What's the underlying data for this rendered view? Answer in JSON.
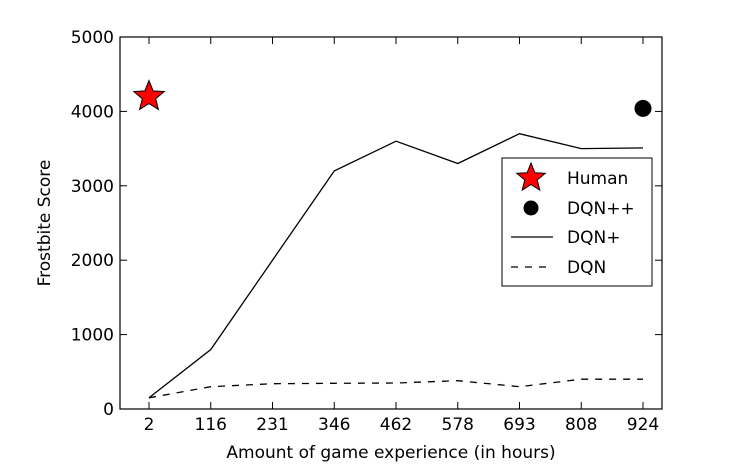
{
  "chart_data": {
    "type": "line",
    "title": "",
    "xlabel": "Amount of game experience (in hours)",
    "ylabel": "Frostbite Score",
    "categories": [
      "2",
      "116",
      "231",
      "346",
      "462",
      "578",
      "693",
      "808",
      "924"
    ],
    "ylim": [
      0,
      5000
    ],
    "yticks": [
      0,
      1000,
      2000,
      3000,
      4000,
      5000
    ],
    "grid": false,
    "legend_position": "center-right",
    "series": [
      {
        "name": "Human",
        "kind": "marker",
        "marker": "star",
        "color": "#ff0000",
        "points": [
          {
            "x": "2",
            "y": 4200
          }
        ]
      },
      {
        "name": "DQN++",
        "kind": "marker",
        "marker": "circle",
        "color": "#000000",
        "points": [
          {
            "x": "924",
            "y": 4040
          }
        ]
      },
      {
        "name": "DQN+",
        "kind": "line",
        "line_style": "solid",
        "color": "#000000",
        "values": [
          150,
          800,
          2000,
          3200,
          3600,
          3300,
          3700,
          3500,
          3510
        ]
      },
      {
        "name": "DQN",
        "kind": "line",
        "line_style": "dashed",
        "color": "#000000",
        "values": [
          150,
          300,
          340,
          345,
          350,
          380,
          300,
          400,
          400
        ]
      }
    ]
  }
}
